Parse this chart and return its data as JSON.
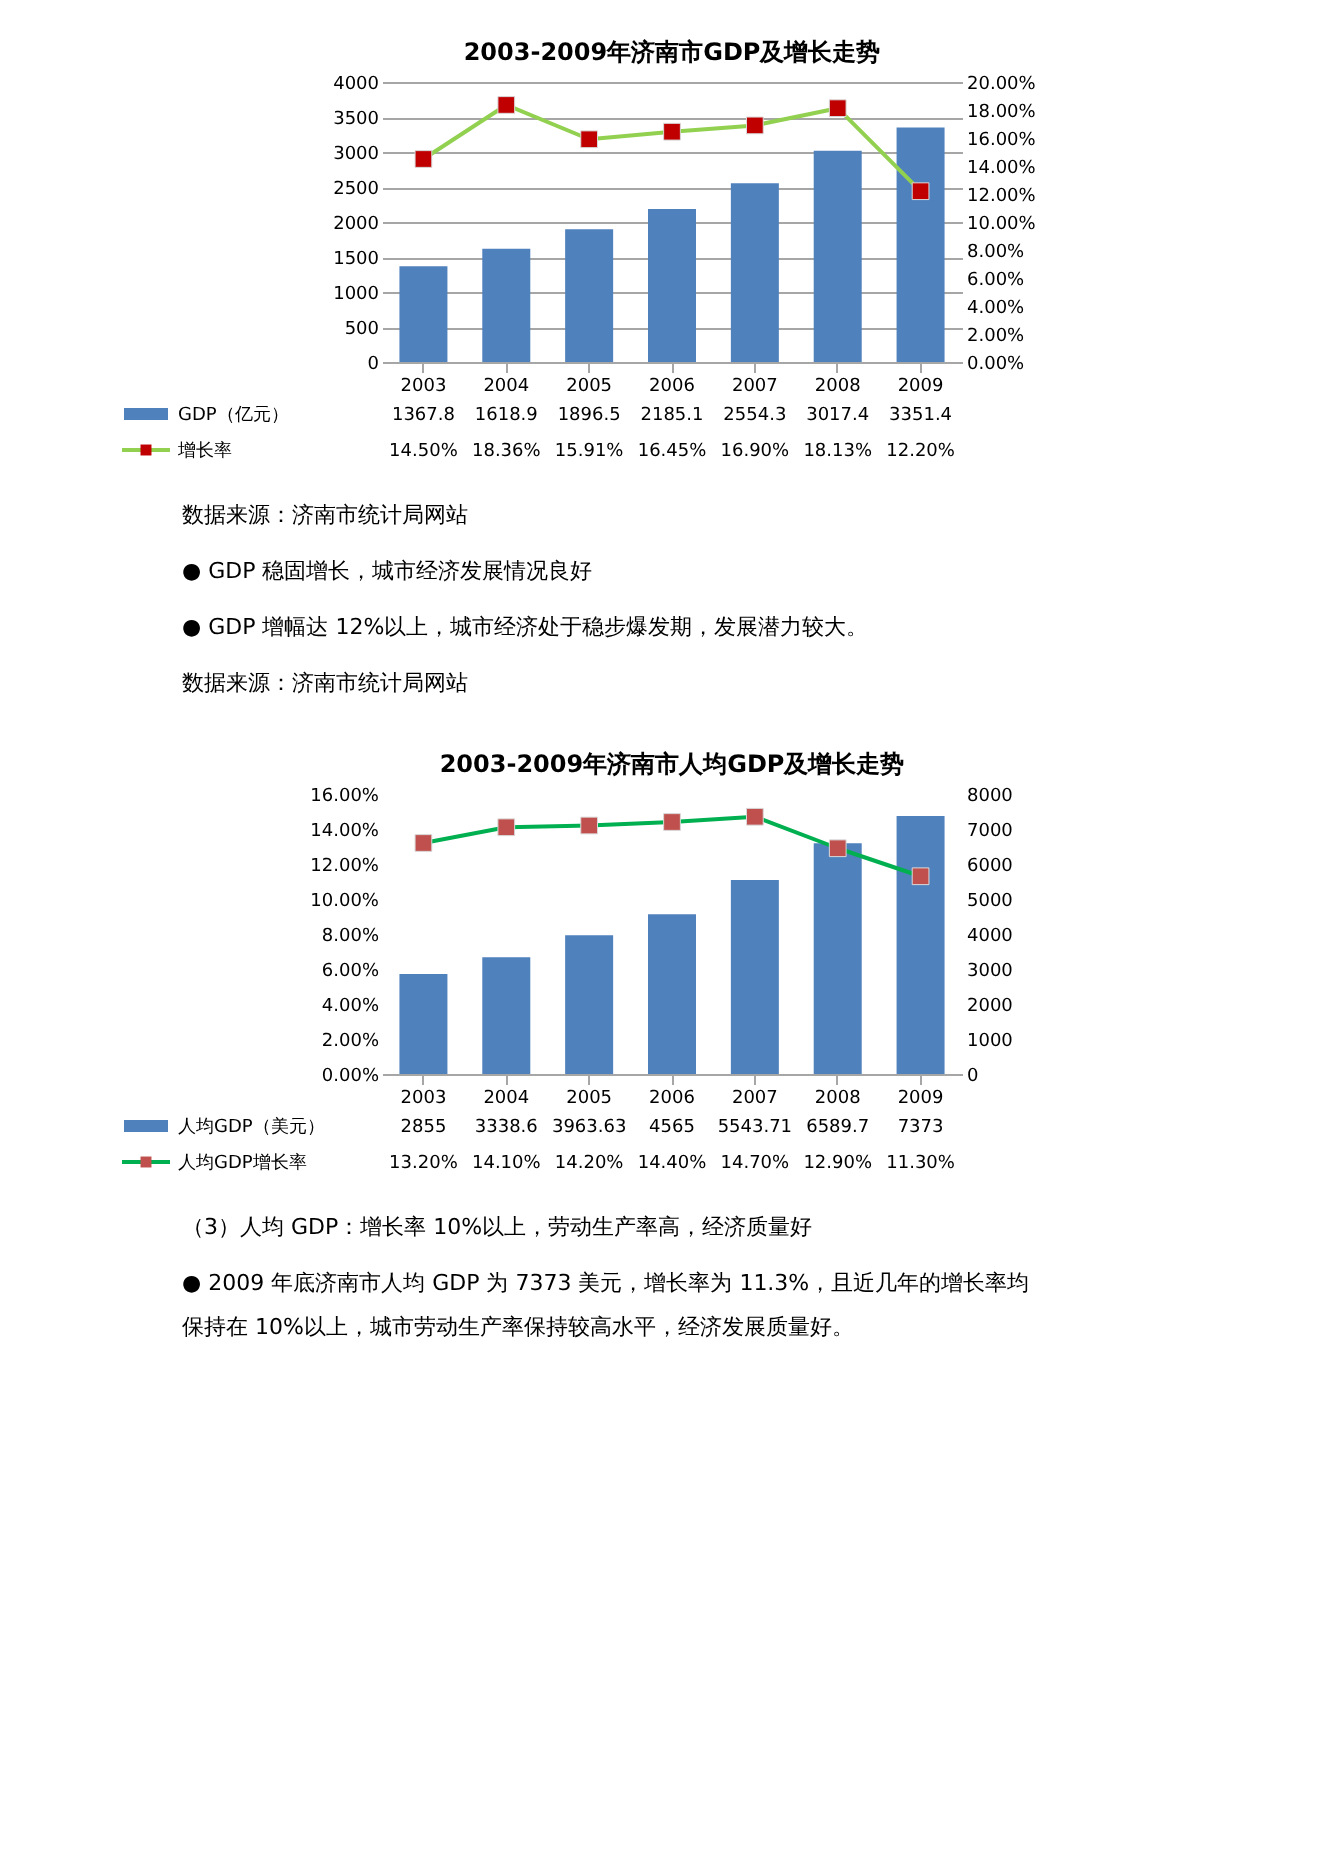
{
  "chart_data": [
    {
      "type": "bar",
      "title": "2003-2009年济南市GDP及增长走势",
      "categories": [
        "2003",
        "2004",
        "2005",
        "2006",
        "2007",
        "2008",
        "2009"
      ],
      "series": [
        {
          "name": "GDP（亿元）",
          "color": "#4f81bd",
          "values": [
            1367.8,
            1618.9,
            1896.5,
            2185.1,
            2554.3,
            3017.4,
            3351.4
          ],
          "value_labels": [
            "1367.8",
            "1618.9",
            "1896.5",
            "2185.1",
            "2554.3",
            "3017.4",
            "3351.4"
          ]
        },
        {
          "name": "增长率",
          "type": "line",
          "axis": "y2",
          "color": "#92d050",
          "values": [
            14.5,
            18.36,
            15.91,
            16.45,
            16.9,
            18.13,
            12.2
          ],
          "value_labels": [
            "14.50%",
            "18.36%",
            "15.91%",
            "16.45%",
            "16.90%",
            "18.13%",
            "12.20%"
          ]
        }
      ],
      "ylim": [
        0,
        4000
      ],
      "yticks": [
        0,
        500,
        1000,
        1500,
        2000,
        2500,
        3000,
        3500,
        4000
      ],
      "y2lim": [
        0,
        20
      ],
      "y2ticks": [
        {
          "value": 0,
          "label": "0.00%"
        },
        {
          "value": 2,
          "label": "2.00%"
        },
        {
          "value": 4,
          "label": "4.00%"
        },
        {
          "value": 6,
          "label": "6.00%"
        },
        {
          "value": 8,
          "label": "8.00%"
        },
        {
          "value": 10,
          "label": "10.00%"
        },
        {
          "value": 12,
          "label": "12.00%"
        },
        {
          "value": 14,
          "label": "14.00%"
        },
        {
          "value": 16,
          "label": "16.00%"
        },
        {
          "value": 18,
          "label": "18.00%"
        },
        {
          "value": 20,
          "label": "20.00%"
        }
      ],
      "grid": "y",
      "legend": "bottom",
      "marker": "square",
      "annotations": [
        "数据来源：济南市统计局网站",
        "●  GDP 稳固增长，城市经济发展情况良好",
        "●  GDP 增幅达 12%以上，城市经济处于稳步爆发期，发展潜力较大。",
        "数据来源：济南市统计局网站"
      ]
    },
    {
      "type": "bar",
      "title": "2003-2009年济南市人均GDP及增长走势",
      "categories": [
        "2003",
        "2004",
        "2005",
        "2006",
        "2007",
        "2008",
        "2009"
      ],
      "series": [
        {
          "name": "人均GDP（美元）",
          "axis": "y2",
          "color": "#4f81bd",
          "values": [
            2855,
            3338.6,
            3963.63,
            4565,
            5543.71,
            6589.7,
            7373
          ],
          "value_labels": [
            "2855",
            "3338.6",
            "3963.63",
            "4565",
            "5543.71",
            "6589.7",
            "7373"
          ]
        },
        {
          "name": "人均GDP增长率",
          "type": "line",
          "color": "#00b050",
          "values": [
            13.2,
            14.1,
            14.2,
            14.4,
            14.7,
            12.9,
            11.3
          ],
          "value_labels": [
            "13.20%",
            "14.10%",
            "14.20%",
            "14.40%",
            "14.70%",
            "12.90%",
            "11.30%"
          ]
        }
      ],
      "ylim": [
        0,
        16
      ],
      "yticks": [
        {
          "value": 0,
          "label": "0.00%"
        },
        {
          "value": 2,
          "label": "2.00%"
        },
        {
          "value": 4,
          "label": "4.00%"
        },
        {
          "value": 6,
          "label": "6.00%"
        },
        {
          "value": 8,
          "label": "8.00%"
        },
        {
          "value": 10,
          "label": "10.00%"
        },
        {
          "value": 12,
          "label": "12.00%"
        },
        {
          "value": 14,
          "label": "14.00%"
        },
        {
          "value": 16,
          "label": "16.00%"
        }
      ],
      "y2lim": [
        0,
        8000
      ],
      "y2ticks": [
        0,
        1000,
        2000,
        3000,
        4000,
        5000,
        6000,
        7000,
        8000
      ],
      "grid": false,
      "legend": "bottom",
      "marker": "square",
      "annotations": [
        "（3）人均 GDP：增长率 10%以上，劳动生产率高，经济质量好",
        "●  2009 年底济南市人均 GDP 为 7373 美元，增长率为 11.3%，且近几年的增长率均保持在 10%以上，城市劳动生产率保持较高水平，经济发展质量好。"
      ]
    }
  ]
}
